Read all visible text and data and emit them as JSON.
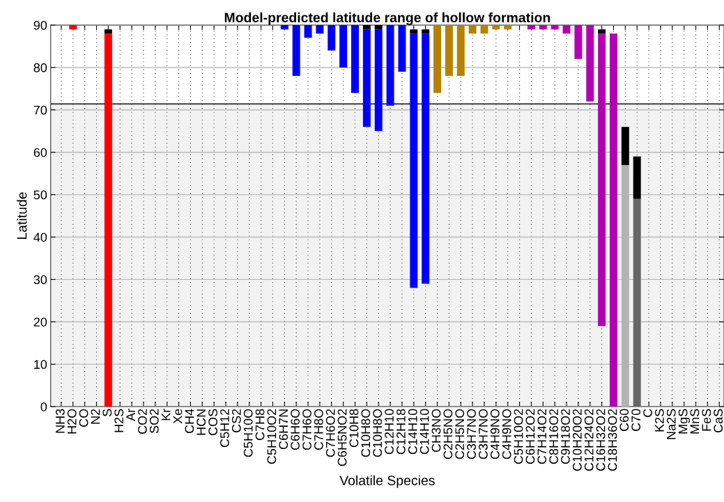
{
  "chart_data": {
    "type": "bar",
    "title": "Model-predicted latitude range of hollow formation",
    "xlabel": "Volatile Species",
    "ylabel": "Latitude",
    "categories": [
      "NH3",
      "H2O",
      "CO",
      "N2",
      "S",
      "H2S",
      "Ar",
      "CO2",
      "SO2",
      "Kr",
      "Xe",
      "CH4",
      "HCN",
      "COS",
      "C5H12",
      "CS2",
      "C5H10O",
      "C7H8",
      "C5H10O2",
      "C6H7N",
      "C6H6O",
      "C7H6O",
      "C7H8O",
      "C7H6O2",
      "C6H5NO2",
      "C10H8",
      "C10H8O",
      "C10H8O",
      "C12H10",
      "C12H18",
      "C14H10",
      "C14H10",
      "CH3NO",
      "C2H5NO",
      "C2H5NO",
      "C3H7NO",
      "C3H7NO",
      "C4H9NO",
      "C4H9NO",
      "C5H10O2",
      "C6H12O2",
      "C7H14O2",
      "C8H16O2",
      "C9H18O2",
      "C10H20O2",
      "C12H24O2",
      "C16H32O2",
      "C18H36O2",
      "C60",
      "C70",
      "C",
      "K2S",
      "Na2S",
      "MgS",
      "MnS",
      "FeS",
      "CaS"
    ],
    "series": [
      {
        "base": [
          null,
          89,
          null,
          null,
          0,
          null,
          null,
          null,
          null,
          null,
          null,
          null,
          null,
          null,
          null,
          null,
          null,
          null,
          null,
          89,
          78,
          87,
          88,
          84,
          80,
          74,
          66,
          65,
          71,
          79,
          28,
          29,
          74,
          78,
          78,
          88,
          88,
          89,
          89,
          null,
          89,
          89,
          89,
          88,
          82,
          72,
          19,
          0,
          0,
          0,
          null,
          null,
          null,
          null,
          null,
          null,
          null
        ],
        "values": [
          null,
          1,
          null,
          null,
          88,
          null,
          null,
          null,
          null,
          null,
          null,
          null,
          null,
          null,
          null,
          null,
          null,
          null,
          null,
          1,
          12,
          3,
          2,
          6,
          10,
          16,
          23,
          24,
          19,
          11,
          60,
          59,
          16,
          12,
          12,
          2,
          2,
          1,
          1,
          null,
          1,
          1,
          1,
          2,
          8,
          18,
          69,
          88,
          57,
          49,
          null,
          null,
          null,
          null,
          null,
          null,
          null
        ],
        "colors": [
          null,
          "#ff0000",
          null,
          null,
          "#ff0000",
          null,
          null,
          null,
          null,
          null,
          null,
          null,
          null,
          null,
          null,
          null,
          null,
          null,
          null,
          "#0000ff",
          "#0000ff",
          "#0000ff",
          "#0000ff",
          "#0000ff",
          "#0000ff",
          "#0000ff",
          "#0000ff",
          "#0000ff",
          "#0000ff",
          "#0000ff",
          "#0000ff",
          "#0000ff",
          "#b58200",
          "#b58200",
          "#b58200",
          "#b58200",
          "#b58200",
          "#b58200",
          "#b58200",
          null,
          "#b400b4",
          "#b400b4",
          "#b400b4",
          "#b400b4",
          "#b400b4",
          "#b400b4",
          "#b400b4",
          "#b400b4",
          "#b3b3b3",
          "#666666",
          null,
          null,
          null,
          null,
          null,
          null,
          null
        ]
      },
      {
        "color": "#000000",
        "base": [
          null,
          null,
          null,
          null,
          88,
          null,
          null,
          null,
          null,
          null,
          null,
          null,
          null,
          null,
          null,
          null,
          null,
          null,
          null,
          null,
          null,
          null,
          null,
          null,
          null,
          null,
          89,
          89,
          null,
          null,
          88,
          88,
          null,
          null,
          null,
          null,
          null,
          null,
          null,
          null,
          null,
          null,
          null,
          null,
          null,
          null,
          88,
          null,
          57,
          49,
          null,
          null,
          null,
          null,
          null,
          null,
          null
        ],
        "values": [
          null,
          null,
          null,
          null,
          1,
          null,
          null,
          null,
          null,
          null,
          null,
          null,
          null,
          null,
          null,
          null,
          null,
          null,
          null,
          null,
          null,
          null,
          null,
          null,
          null,
          null,
          1,
          1,
          null,
          null,
          1,
          1,
          null,
          null,
          null,
          null,
          null,
          null,
          null,
          null,
          null,
          null,
          null,
          null,
          null,
          null,
          1,
          null,
          9,
          10,
          null,
          null,
          null,
          null,
          null,
          null,
          null
        ]
      }
    ],
    "ylim": [
      0,
      90
    ],
    "yticks": [
      0,
      10,
      20,
      30,
      40,
      50,
      60,
      70,
      80,
      90
    ],
    "bands": [
      {
        "axis": "y",
        "from": 0,
        "to": 71.4,
        "color": "#f2f2f2"
      }
    ],
    "ref_lines": [
      {
        "axis": "y",
        "value": 71.4,
        "color": "#404040"
      }
    ],
    "grid": true
  }
}
